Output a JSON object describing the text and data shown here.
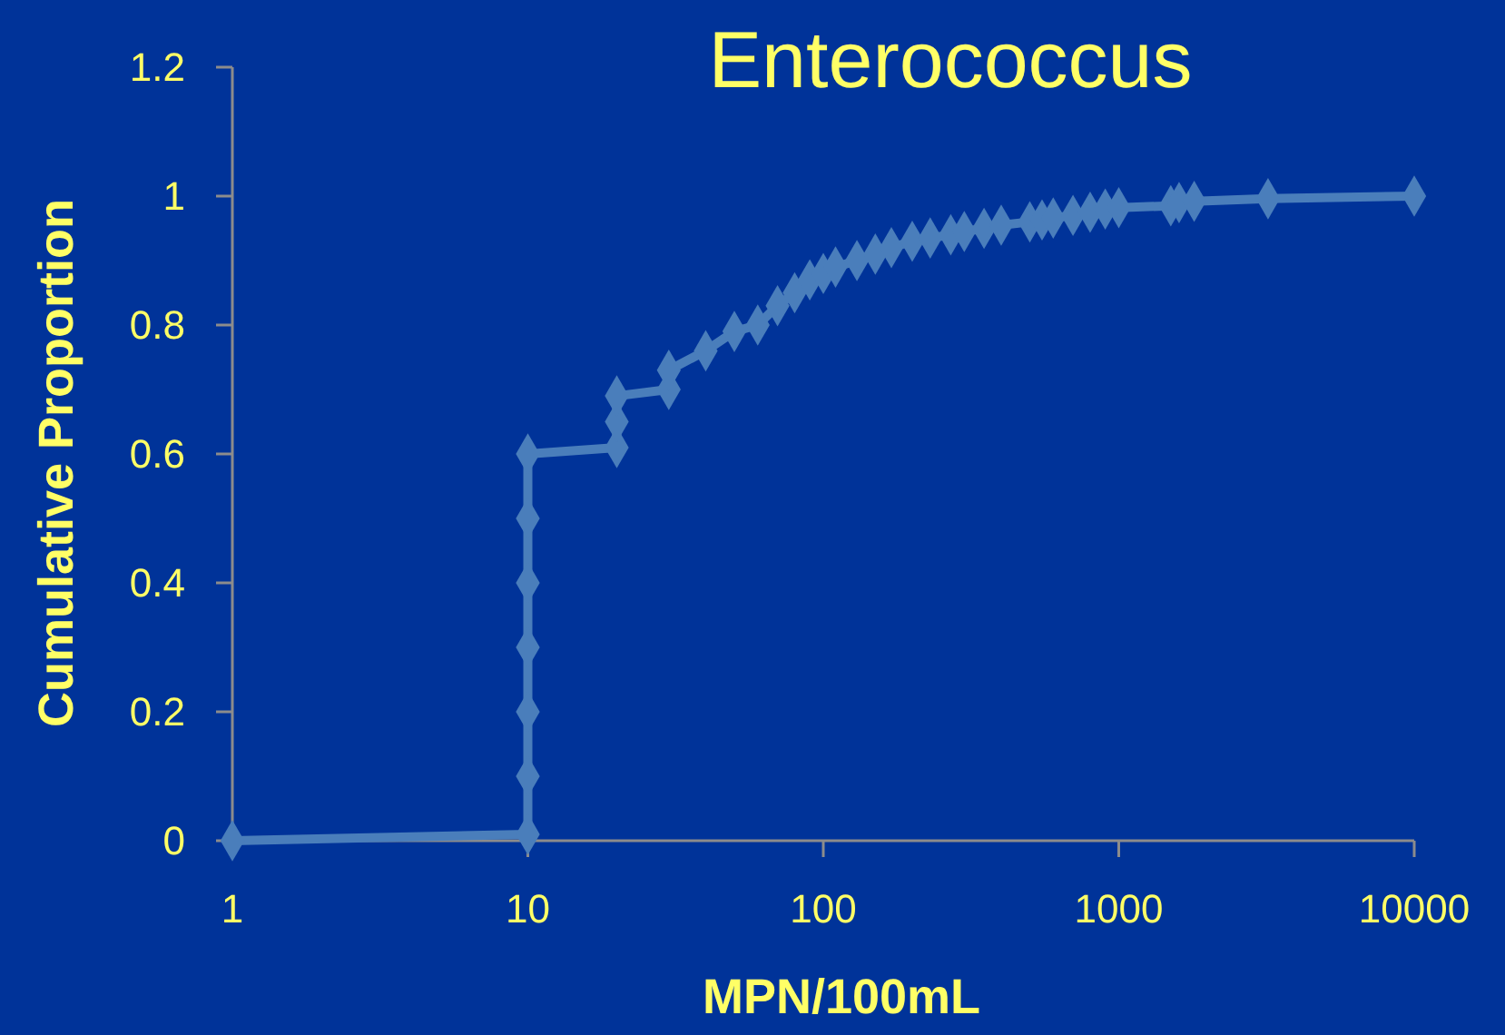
{
  "chart_data": {
    "type": "line",
    "title": "Enterococcus",
    "xlabel": "MPN/100mL",
    "ylabel": "Cumulative Proportion",
    "log": "x",
    "marker": "diamond",
    "grid": false,
    "xlim": [
      1,
      10000
    ],
    "xticks": [
      1,
      10,
      100,
      1000,
      10000
    ],
    "ylim": [
      0,
      1.2
    ],
    "yticks": [
      0,
      0.2,
      0.4,
      0.6,
      0.8,
      1,
      1.2
    ],
    "series": [
      {
        "color": "#4a7ebb",
        "x": [
          1,
          10,
          10,
          10,
          10,
          10,
          10,
          10,
          20,
          20,
          20,
          30,
          30,
          40,
          50,
          60,
          70,
          80,
          90,
          100,
          110,
          130,
          150,
          170,
          200,
          230,
          270,
          300,
          350,
          400,
          500,
          550,
          600,
          700,
          800,
          900,
          1000,
          1500,
          1600,
          1800,
          3200,
          10000
        ],
        "values": [
          0,
          0.01,
          0.1,
          0.2,
          0.3,
          0.4,
          0.5,
          0.6,
          0.61,
          0.65,
          0.69,
          0.7,
          0.73,
          0.76,
          0.79,
          0.8,
          0.83,
          0.85,
          0.87,
          0.88,
          0.89,
          0.9,
          0.91,
          0.92,
          0.93,
          0.935,
          0.94,
          0.945,
          0.95,
          0.955,
          0.96,
          0.963,
          0.966,
          0.97,
          0.975,
          0.98,
          0.982,
          0.985,
          0.99,
          0.992,
          0.996,
          1
        ]
      }
    ]
  }
}
